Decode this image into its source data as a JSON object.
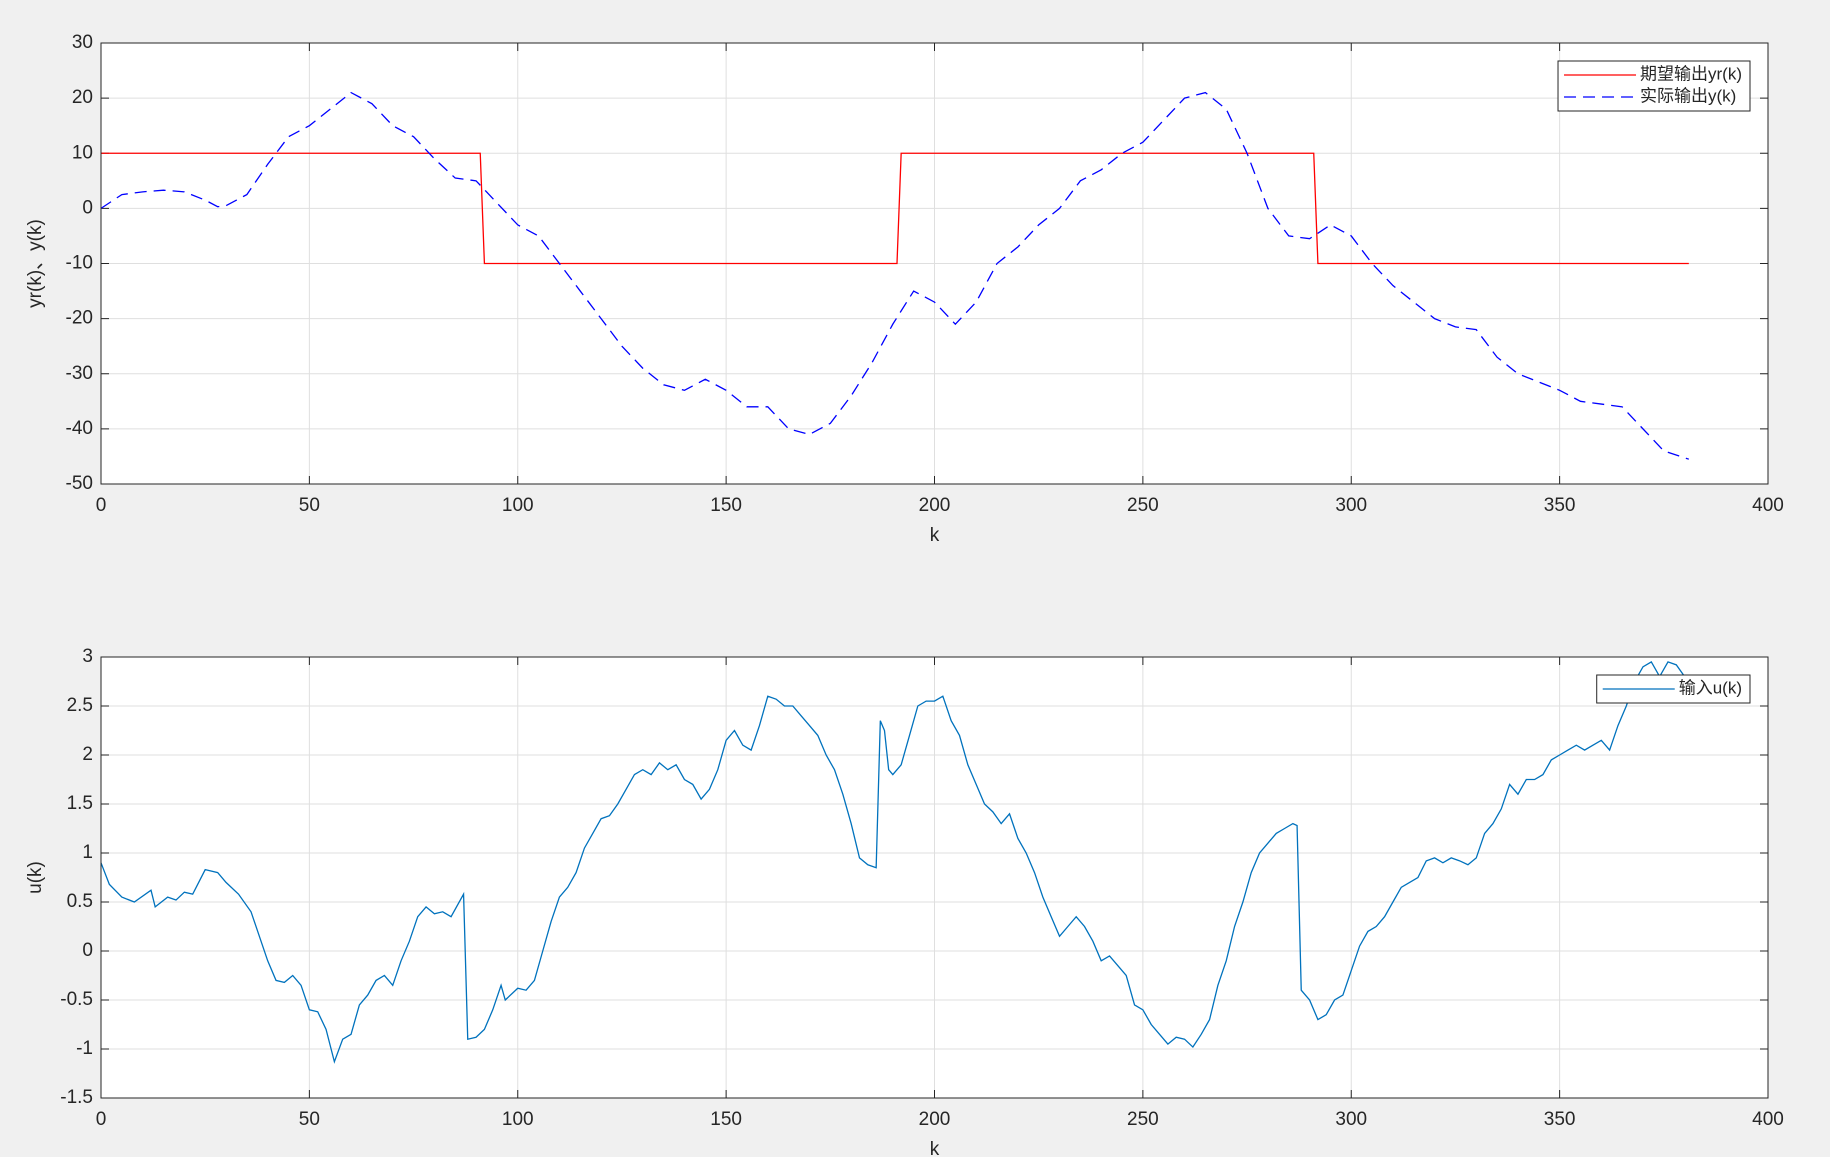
{
  "chart_data": [
    {
      "type": "line",
      "xlabel": "k",
      "ylabel": "yr(k)、y(k)",
      "xlim": [
        0,
        400
      ],
      "xticks": [
        0,
        50,
        100,
        150,
        200,
        250,
        300,
        350,
        400
      ],
      "ylim": [
        -50,
        30
      ],
      "yticks": [
        -50,
        -40,
        -30,
        -20,
        -10,
        0,
        10,
        20,
        30
      ],
      "grid": true,
      "legend": "northeast",
      "series": [
        {
          "name": "期望输出yr(k)",
          "color": "#ff0000",
          "line_style": "solid",
          "x": [
            0,
            91,
            92,
            191,
            192,
            291,
            292,
            381
          ],
          "values": [
            10,
            10,
            -10,
            -10,
            10,
            10,
            -10,
            -10
          ]
        },
        {
          "name": "实际输出y(k)",
          "color": "#0000ff",
          "line_style": "dashed",
          "x": [
            0,
            5,
            10,
            15,
            20,
            25,
            28,
            30,
            35,
            40,
            45,
            50,
            55,
            60,
            65,
            70,
            75,
            80,
            85,
            90,
            95,
            100,
            105,
            110,
            115,
            120,
            125,
            130,
            135,
            140,
            145,
            150,
            155,
            160,
            165,
            170,
            175,
            180,
            185,
            190,
            195,
            200,
            205,
            210,
            215,
            220,
            225,
            230,
            235,
            240,
            245,
            250,
            255,
            260,
            265,
            270,
            275,
            280,
            285,
            290,
            295,
            300,
            305,
            310,
            315,
            320,
            325,
            330,
            335,
            340,
            345,
            350,
            355,
            360,
            365,
            370,
            375,
            381
          ],
          "values": [
            0,
            2.5,
            3,
            3.3,
            3,
            1.5,
            0.3,
            0.5,
            2.5,
            8,
            13,
            15,
            18,
            21,
            19,
            15,
            13,
            9,
            5.5,
            5,
            1,
            -3,
            -5,
            -10,
            -15,
            -20,
            -25,
            -29,
            -32,
            -33,
            -31,
            -33,
            -36,
            -36,
            -40,
            -41,
            -39,
            -34,
            -28,
            -21,
            -15,
            -17,
            -21,
            -17,
            -10,
            -7,
            -3,
            0,
            5,
            7,
            10,
            12,
            16,
            20,
            21,
            18,
            10,
            0,
            -5,
            -5.5,
            -3,
            -5,
            -10,
            -14,
            -17,
            -20,
            -21.5,
            -22,
            -27,
            -30,
            -31.5,
            -33,
            -35,
            -35.5,
            -36,
            -40,
            -44,
            -45.5
          ]
        }
      ]
    },
    {
      "type": "line",
      "xlabel": "k",
      "ylabel": "u(k)",
      "xlim": [
        0,
        400
      ],
      "xticks": [
        0,
        50,
        100,
        150,
        200,
        250,
        300,
        350,
        400
      ],
      "ylim": [
        -1.5,
        3
      ],
      "yticks": [
        -1.5,
        -1,
        -0.5,
        0,
        0.5,
        1,
        1.5,
        2,
        2.5,
        3
      ],
      "grid": true,
      "legend": "northeast",
      "series": [
        {
          "name": "输入u(k)",
          "color": "#0072bd",
          "line_style": "solid",
          "x": [
            0,
            2,
            5,
            8,
            12,
            13,
            16,
            18,
            20,
            22,
            25,
            28,
            30,
            33,
            36,
            38,
            40,
            42,
            44,
            46,
            48,
            50,
            52,
            54,
            56,
            58,
            60,
            62,
            64,
            66,
            68,
            70,
            72,
            74,
            76,
            78,
            80,
            82,
            84,
            87,
            88,
            90,
            92,
            94,
            96,
            97,
            100,
            102,
            104,
            106,
            108,
            110,
            112,
            114,
            116,
            118,
            120,
            122,
            124,
            126,
            128,
            130,
            132,
            134,
            136,
            138,
            140,
            142,
            144,
            146,
            148,
            150,
            152,
            154,
            156,
            158,
            160,
            162,
            164,
            166,
            168,
            170,
            172,
            174,
            176,
            178,
            180,
            182,
            184,
            186,
            187,
            188,
            189,
            190,
            192,
            194,
            196,
            198,
            200,
            202,
            204,
            206,
            208,
            210,
            212,
            214,
            216,
            218,
            220,
            222,
            224,
            226,
            228,
            230,
            232,
            234,
            236,
            238,
            240,
            242,
            244,
            246,
            248,
            250,
            252,
            254,
            256,
            258,
            260,
            262,
            264,
            266,
            268,
            270,
            272,
            274,
            276,
            278,
            280,
            282,
            284,
            286,
            287,
            288,
            290,
            292,
            294,
            296,
            298,
            300,
            302,
            304,
            306,
            308,
            310,
            312,
            314,
            316,
            318,
            320,
            322,
            324,
            326,
            328,
            330,
            332,
            334,
            336,
            338,
            340,
            342,
            344,
            346,
            348,
            350,
            352,
            354,
            356,
            358,
            360,
            362,
            364,
            366,
            368,
            370,
            372,
            374,
            376,
            378,
            380
          ],
          "values": [
            0.9,
            0.68,
            0.55,
            0.5,
            0.62,
            0.45,
            0.55,
            0.52,
            0.6,
            0.58,
            0.83,
            0.8,
            0.7,
            0.58,
            0.4,
            0.15,
            -0.1,
            -0.3,
            -0.32,
            -0.25,
            -0.35,
            -0.6,
            -0.62,
            -0.8,
            -1.13,
            -0.9,
            -0.85,
            -0.55,
            -0.45,
            -0.3,
            -0.25,
            -0.35,
            -0.1,
            0.1,
            0.35,
            0.45,
            0.38,
            0.4,
            0.35,
            0.58,
            -0.9,
            -0.88,
            -0.8,
            -0.6,
            -0.35,
            -0.5,
            -0.38,
            -0.4,
            -0.3,
            0,
            0.3,
            0.55,
            0.65,
            0.8,
            1.05,
            1.2,
            1.35,
            1.38,
            1.5,
            1.65,
            1.8,
            1.85,
            1.8,
            1.92,
            1.85,
            1.9,
            1.75,
            1.7,
            1.55,
            1.65,
            1.85,
            2.15,
            2.25,
            2.1,
            2.05,
            2.3,
            2.6,
            2.57,
            2.5,
            2.5,
            2.4,
            2.3,
            2.2,
            2,
            1.85,
            1.6,
            1.3,
            0.95,
            0.88,
            0.85,
            2.35,
            2.25,
            1.85,
            1.8,
            1.9,
            2.2,
            2.5,
            2.55,
            2.55,
            2.6,
            2.35,
            2.2,
            1.9,
            1.7,
            1.5,
            1.42,
            1.3,
            1.4,
            1.15,
            1,
            0.8,
            0.55,
            0.35,
            0.15,
            0.25,
            0.35,
            0.25,
            0.1,
            -0.1,
            -0.05,
            -0.15,
            -0.25,
            -0.55,
            -0.6,
            -0.75,
            -0.85,
            -0.95,
            -0.88,
            -0.9,
            -0.98,
            -0.85,
            -0.7,
            -0.35,
            -0.1,
            0.25,
            0.5,
            0.8,
            1,
            1.1,
            1.2,
            1.25,
            1.3,
            1.28,
            -0.4,
            -0.5,
            -0.7,
            -0.65,
            -0.5,
            -0.45,
            -0.2,
            0.05,
            0.2,
            0.25,
            0.35,
            0.5,
            0.65,
            0.7,
            0.75,
            0.92,
            0.95,
            0.9,
            0.95,
            0.92,
            0.88,
            0.95,
            1.2,
            1.3,
            1.45,
            1.7,
            1.6,
            1.75,
            1.75,
            1.8,
            1.95,
            2,
            2.05,
            2.1,
            2.05,
            2.1,
            2.15,
            2.05,
            2.3,
            2.5,
            2.75,
            2.9,
            2.95,
            2.8,
            2.95,
            2.92,
            2.8
          ]
        }
      ]
    }
  ]
}
